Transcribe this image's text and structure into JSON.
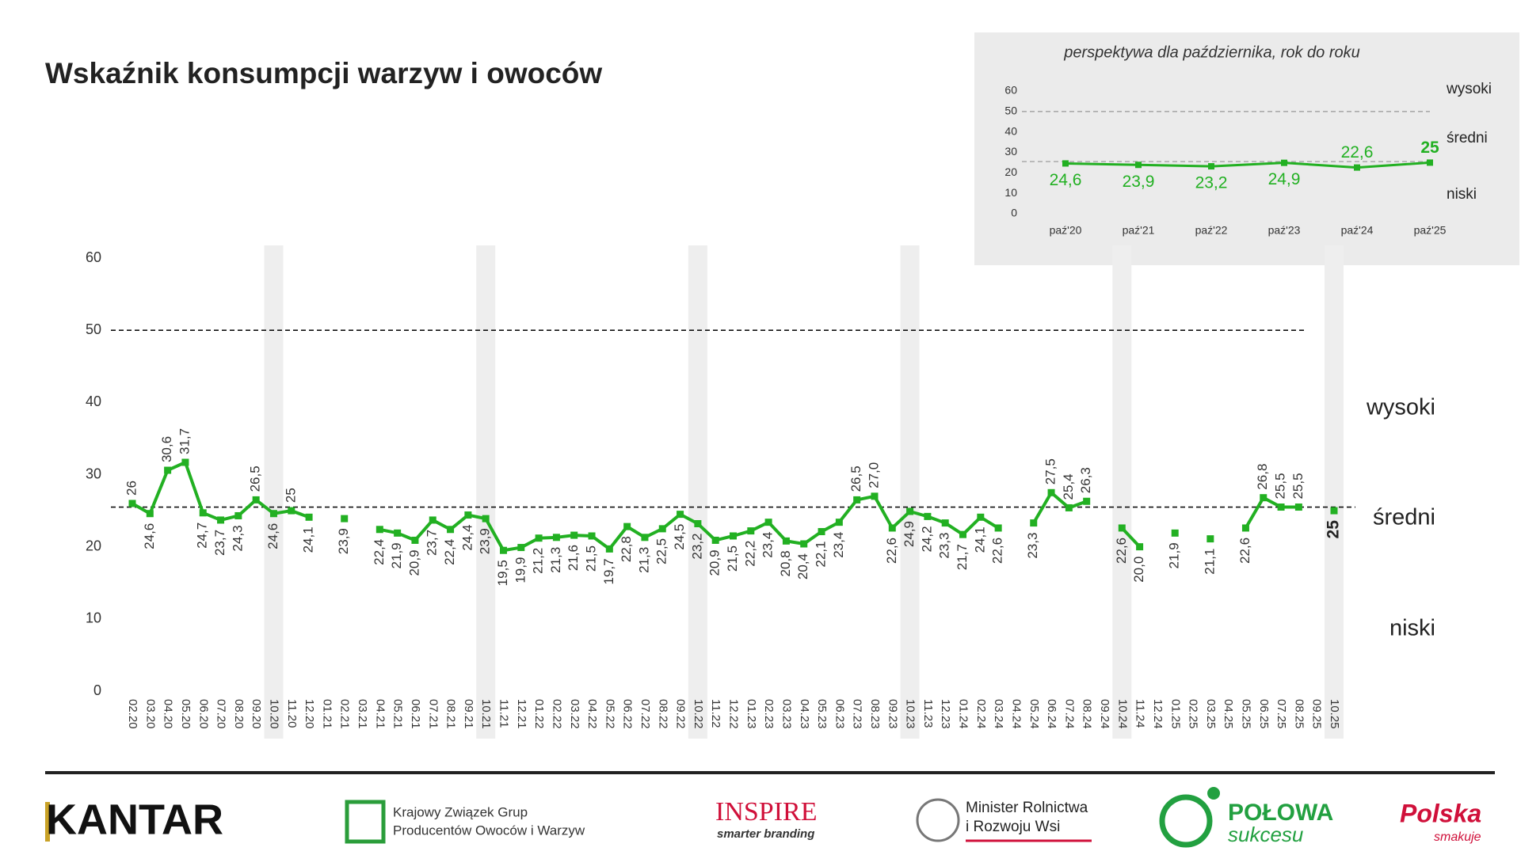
{
  "chart_data": [
    {
      "type": "line",
      "title": "Wskaźnik konsumpcji warzyw i owoców",
      "categories": [
        "02.20",
        "03.20",
        "04.20",
        "05.20",
        "06.20",
        "07.20",
        "08.20",
        "09.20",
        "10.20",
        "11.20",
        "12.20",
        "01.21",
        "02.21",
        "03.21",
        "04.21",
        "05.21",
        "06.21",
        "07.21",
        "08.21",
        "09.21",
        "10.21",
        "11.21",
        "12.21",
        "01.22",
        "02.22",
        "03.22",
        "04.22",
        "05.22",
        "06.22",
        "07.22",
        "08.22",
        "09.22",
        "10.22",
        "11.22",
        "12.22",
        "01.23",
        "02.23",
        "03.23",
        "04.23",
        "05.23",
        "06.23",
        "07.23",
        "08.23",
        "09.23",
        "10.23",
        "11.23",
        "12.23",
        "01.24",
        "02.24",
        "03.24",
        "04.24",
        "05.24",
        "06.24",
        "07.24",
        "08.24",
        "09.24",
        "10.24",
        "11.24",
        "12.24",
        "01.25",
        "02.25",
        "03.25",
        "04.25",
        "05.25",
        "06.25",
        "07.25",
        "08.25",
        "09.25",
        "10.25"
      ],
      "values": [
        26,
        24.6,
        30.6,
        31.7,
        24.7,
        23.7,
        24.3,
        26.5,
        24.6,
        25,
        24.1,
        null,
        23.9,
        null,
        22.4,
        21.9,
        20.9,
        23.7,
        22.4,
        24.4,
        23.9,
        19.5,
        19.9,
        21.2,
        21.3,
        21.6,
        21.5,
        19.7,
        22.8,
        21.3,
        22.5,
        24.5,
        23.2,
        20.9,
        21.5,
        22.2,
        23.4,
        20.8,
        20.4,
        22.1,
        23.4,
        26.5,
        27.0,
        22.6,
        24.9,
        24.2,
        23.3,
        21.7,
        24.1,
        22.6,
        null,
        23.3,
        27.5,
        25.4,
        26.3,
        null,
        22.6,
        20.0,
        null,
        21.9,
        null,
        21.1,
        null,
        22.6,
        26.8,
        25.5,
        25.5,
        null,
        25
      ],
      "value_labels": [
        "26",
        "24,6",
        "30,6",
        "31,7",
        "24,7",
        "23,7",
        "24,3",
        "26,5",
        "24,6",
        "25",
        "24,1",
        null,
        "23,9",
        null,
        "22,4",
        "21,9",
        "20,9",
        "23,7",
        "22,4",
        "24,4",
        "23,9",
        "19,5",
        "19,9",
        "21,2",
        "21,3",
        "21,6",
        "21,5",
        "19,7",
        "22,8",
        "21,3",
        "22,5",
        "24,5",
        "23,2",
        "20,9",
        "21,5",
        "22,2",
        "23,4",
        "20,8",
        "20,4",
        "22,1",
        "23,4",
        "26,5",
        "27,0",
        "22,6",
        "24,9",
        "24,2",
        "23,3",
        "21,7",
        "24,1",
        "22,6",
        null,
        "23,3",
        "27,5",
        "25,4",
        "26,3",
        null,
        "22,6",
        "20,0",
        null,
        "21,9",
        null,
        "21,1",
        null,
        "22,6",
        "26,8",
        "25,5",
        "25,5",
        null,
        "25"
      ],
      "color": "#22b022",
      "ylim": [
        0,
        60
      ],
      "yticks": [
        0,
        10,
        20,
        30,
        40,
        50,
        60
      ],
      "reference_lines": [
        50,
        25.5
      ],
      "zone_labels": [
        "wysoki",
        "średni",
        "niski"
      ],
      "highlight_color": "#eeeeee"
    },
    {
      "type": "line",
      "title": "perspektywa dla października, rok do roku",
      "categories": [
        "paź'20",
        "paź'21",
        "paź'22",
        "paź'23",
        "paź'24",
        "paź'25"
      ],
      "values": [
        24.6,
        23.9,
        23.2,
        24.9,
        22.6,
        25
      ],
      "value_labels": [
        "24,6",
        "23,9",
        "23,2",
        "24,9",
        "22,6",
        "25"
      ],
      "color": "#22b022",
      "ylim": [
        0,
        60
      ],
      "yticks": [
        0,
        10,
        20,
        30,
        40,
        50,
        60
      ],
      "reference_lines": [
        50,
        25.5
      ],
      "zone_labels": [
        "wysoki",
        "średni",
        "niski"
      ],
      "background": "#ebebeb"
    }
  ],
  "footer": {
    "kantar": "KANTAR",
    "kzgp": [
      "Krajowy Związek Grup",
      "Producentów Owoców i Warzyw"
    ],
    "inspire": [
      "INSPIRE",
      "smarter branding"
    ],
    "ministry": [
      "Minister Rolnictwa",
      "i Rozwoju Wsi"
    ],
    "polowa": [
      "POŁOWA",
      "sukcesu"
    ],
    "polska": [
      "Polska",
      "smakuje"
    ]
  }
}
